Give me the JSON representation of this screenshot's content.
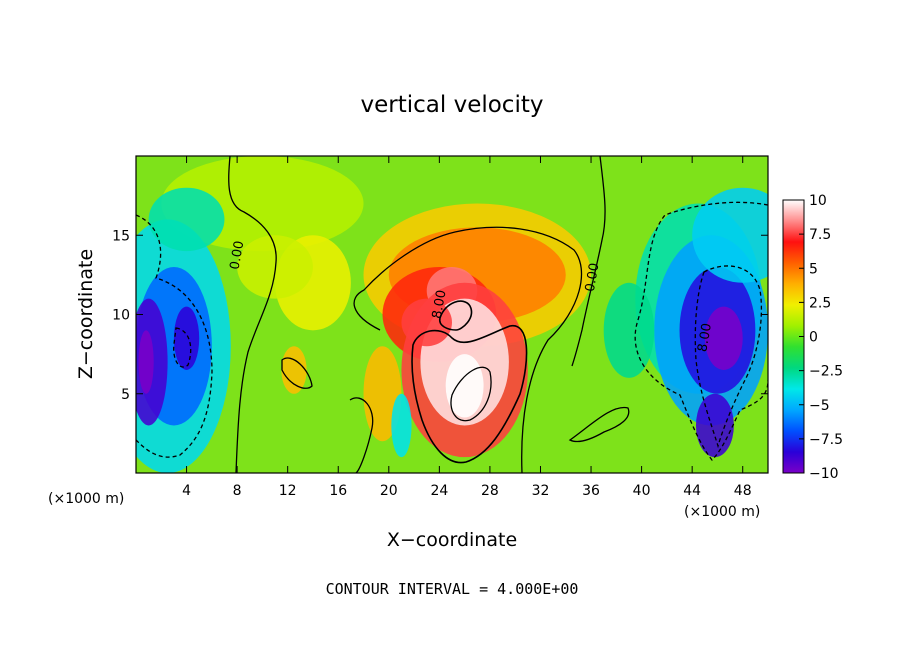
{
  "chart_data": {
    "type": "heatmap",
    "title": "vertical velocity",
    "xlabel": "X−coordinate",
    "ylabel": "Z−coordinate",
    "x_units_left": "(×1000 m)",
    "x_units_right": "(×1000 m)",
    "footer": "CONTOUR INTERVAL = 4.000E+00",
    "xlim": [
      0,
      50
    ],
    "ylim": [
      0,
      20
    ],
    "x_ticks": [
      4,
      8,
      12,
      16,
      20,
      24,
      28,
      32,
      36,
      40,
      44,
      48
    ],
    "y_ticks": [
      5,
      10,
      15
    ],
    "colorbar": {
      "min": -10,
      "max": 10,
      "ticks": [
        10,
        7.5,
        5,
        2.5,
        0,
        -2.5,
        -5,
        -7.5,
        -10
      ],
      "tick_labels": [
        "10",
        "7.5",
        "5",
        "2.5",
        "0",
        "−2.5",
        "−5",
        "−7.5",
        "−10"
      ],
      "colormap": [
        "#7a00c8",
        "#2a00d8",
        "#0050ff",
        "#00a8ff",
        "#00e8e8",
        "#00d880",
        "#30e030",
        "#a0f000",
        "#f0f000",
        "#ffb000",
        "#ff6000",
        "#ff1010",
        "#ff8c8c",
        "#ffffff"
      ]
    },
    "contour_labels": [
      {
        "text": "0.00",
        "x": 8.3,
        "z": 13.7
      },
      {
        "text": "8.00",
        "x": 24.3,
        "z": 10.6
      },
      {
        "text": "0.00",
        "x": 36.4,
        "z": 12.3
      },
      {
        "text": "8.00",
        "x": 45.3,
        "z": 8.5
      }
    ],
    "field_features": [
      {
        "kind": "updraft",
        "x": 25.8,
        "z": 7.5,
        "w": 11.5
      },
      {
        "kind": "updraft",
        "x": 25.0,
        "z": 11.5,
        "w": 8.5
      },
      {
        "kind": "downdraft",
        "x": 0.9,
        "z": 7.0,
        "w": -10.5
      },
      {
        "kind": "downdraft",
        "x": 46.3,
        "z": 8.5,
        "w": -10.0
      },
      {
        "kind": "downdraft",
        "x": 45.8,
        "z": 3.0,
        "w": -9.0
      }
    ]
  }
}
